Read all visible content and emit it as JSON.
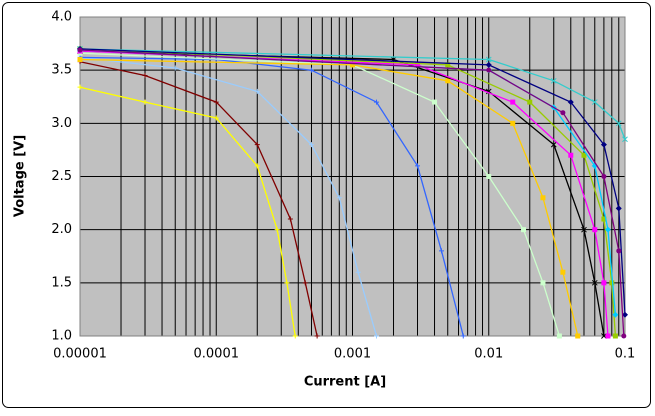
{
  "chart_data": {
    "type": "line",
    "x_label": "Current [A]",
    "y_label": "Voltage [V]",
    "x_log": true,
    "grid": true,
    "minor_grid": true,
    "plot_background": "#c0c0c0",
    "xlim": [
      1e-05,
      0.1
    ],
    "xticks": [
      1e-05,
      0.0001,
      0.001,
      0.01,
      0.1
    ],
    "ylim": [
      1,
      4
    ],
    "yticks": [
      {
        "value": 1,
        "label": "1.0"
      },
      {
        "value": 1.5,
        "label": "1.5"
      },
      {
        "value": 2,
        "label": "2.0"
      },
      {
        "value": 2.5,
        "label": "2.5"
      },
      {
        "value": 3,
        "label": "3.0"
      },
      {
        "value": 3.5,
        "label": "3.5"
      },
      {
        "value": 4,
        "label": "4.0"
      }
    ],
    "series": [
      {
        "color": "#ffff00",
        "marker": "plus",
        "x": [
          1e-05,
          3e-05,
          0.0001,
          0.0002,
          0.00028,
          0.00033,
          0.00038
        ],
        "values": [
          3.34,
          3.2,
          3.05,
          2.6,
          2.0,
          1.5,
          1.0
        ]
      },
      {
        "color": "#800000",
        "marker": "plus",
        "x": [
          1e-05,
          3e-05,
          0.0001,
          0.0002,
          0.00035,
          0.00045,
          0.00055
        ],
        "values": [
          3.58,
          3.45,
          3.2,
          2.8,
          2.1,
          1.5,
          1.0
        ]
      },
      {
        "color": "#99ccff",
        "marker": "plus",
        "x": [
          1e-05,
          5e-05,
          0.0002,
          0.0005,
          0.0008,
          0.0011,
          0.0015
        ],
        "values": [
          3.62,
          3.52,
          3.3,
          2.8,
          2.3,
          1.6,
          1.0
        ]
      },
      {
        "color": "#3366ff",
        "marker": "plus",
        "x": [
          1e-05,
          0.0001,
          0.0005,
          0.0015,
          0.003,
          0.0045,
          0.0065
        ],
        "values": [
          3.62,
          3.6,
          3.5,
          3.2,
          2.6,
          1.8,
          1.0
        ]
      },
      {
        "color": "#ccffcc",
        "marker": "square",
        "x": [
          1e-05,
          0.001,
          0.004,
          0.01,
          0.018,
          0.025,
          0.033
        ],
        "values": [
          3.66,
          3.55,
          3.2,
          2.5,
          2.0,
          1.5,
          1.0
        ]
      },
      {
        "color": "#ffcc00",
        "marker": "square",
        "x": [
          1e-05,
          0.001,
          0.005,
          0.015,
          0.025,
          0.035,
          0.045
        ],
        "values": [
          3.6,
          3.55,
          3.4,
          3.0,
          2.3,
          1.6,
          1.0
        ]
      },
      {
        "color": "#000000",
        "marker": "x",
        "x": [
          1e-05,
          0.002,
          0.01,
          0.03,
          0.05,
          0.06,
          0.07
        ],
        "values": [
          3.68,
          3.6,
          3.3,
          2.8,
          2.0,
          1.5,
          1.0
        ]
      },
      {
        "color": "#ff00ff",
        "marker": "square",
        "x": [
          1e-05,
          0.003,
          0.015,
          0.04,
          0.06,
          0.07,
          0.075
        ],
        "values": [
          3.68,
          3.55,
          3.2,
          2.7,
          2.0,
          1.5,
          1.0
        ]
      },
      {
        "color": "#99cc00",
        "marker": "square",
        "x": [
          1e-05,
          0.005,
          0.02,
          0.05,
          0.07,
          0.08,
          0.085
        ],
        "values": [
          3.7,
          3.55,
          3.2,
          2.7,
          2.1,
          1.5,
          1.0
        ]
      },
      {
        "color": "#00ccff",
        "marker": "diamond",
        "x": [
          1e-05,
          0.01,
          0.03,
          0.06,
          0.075,
          0.085
        ],
        "values": [
          3.69,
          3.5,
          3.15,
          2.6,
          2.0,
          1.2
        ]
      },
      {
        "color": "#33cccc",
        "marker": "x",
        "x": [
          1e-05,
          0.01,
          0.03,
          0.06,
          0.09,
          0.1
        ],
        "values": [
          3.7,
          3.6,
          3.4,
          3.2,
          3.0,
          2.85
        ]
      },
      {
        "color": "#000080",
        "marker": "diamond",
        "x": [
          1e-05,
          0.01,
          0.04,
          0.07,
          0.09,
          0.1
        ],
        "values": [
          3.7,
          3.55,
          3.2,
          2.8,
          2.2,
          1.2
        ]
      },
      {
        "color": "#800080",
        "marker": "circle",
        "x": [
          1e-05,
          0.01,
          0.035,
          0.07,
          0.09,
          0.098
        ],
        "values": [
          3.69,
          3.5,
          3.1,
          2.5,
          1.8,
          1.0
        ]
      }
    ]
  }
}
